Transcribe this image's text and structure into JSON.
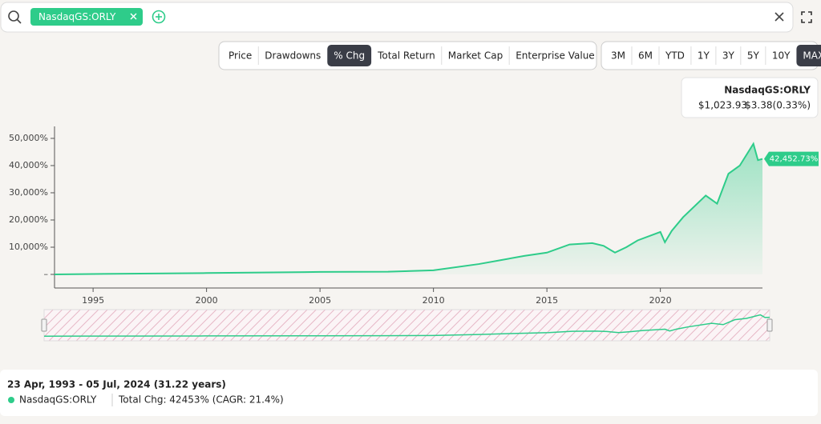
{
  "search": {
    "tag": "NasdaqGS:ORLY"
  },
  "tabs": [
    "Price",
    "Drawdowns",
    "% Chg",
    "Total Return",
    "Market Cap",
    "Enterprise Value"
  ],
  "active_tab": 2,
  "ranges": [
    "3M",
    "6M",
    "YTD",
    "1Y",
    "3Y",
    "5Y",
    "10Y",
    "MAX"
  ],
  "active_range": 7,
  "tooltip": {
    "name": "NasdaqGS:ORLY",
    "price": "$1,023.93",
    "change": "$3.38(0.33%)"
  },
  "chart_data": {
    "type": "line",
    "x": [
      1993.3,
      1995,
      2000,
      2005,
      2008,
      2010,
      2012,
      2013,
      2014,
      2015,
      2016,
      2017,
      2017.5,
      2018,
      2018.5,
      2019,
      2020,
      2020.2,
      2020.5,
      2021,
      2022,
      2022.5,
      2023,
      2023.5,
      2024.1,
      2024.3,
      2024.5
    ],
    "series": [
      {
        "name": "NasdaqGS:ORLY",
        "color": "#2ecc8a",
        "values": [
          0,
          150,
          500,
          900,
          1000,
          1500,
          3800,
          5300,
          6800,
          8000,
          11000,
          11500,
          10500,
          8000,
          10000,
          12500,
          15600,
          11800,
          16000,
          21000,
          29000,
          26000,
          37000,
          40000,
          48000,
          42000,
          42452.73
        ],
        "value_labels": [
          null,
          null,
          null,
          null,
          null,
          null,
          null,
          null,
          null,
          null,
          null,
          null,
          null,
          null,
          null,
          null,
          null,
          null,
          null,
          null,
          null,
          null,
          null,
          null,
          null,
          null,
          "42,452.73%"
        ]
      }
    ],
    "xlim": [
      1993.3,
      2024.5
    ],
    "xticks": [
      1995,
      2000,
      2005,
      2010,
      2015,
      2020
    ],
    "ylim": [
      -5000,
      54400
    ],
    "yticks": [
      {
        "value": 0,
        "label": "–"
      },
      {
        "value": 10000,
        "label": "10,000%"
      },
      {
        "value": 20000,
        "label": "20,000%"
      },
      {
        "value": 30000,
        "label": "30,000%"
      },
      {
        "value": 40000,
        "label": "40,000%"
      },
      {
        "value": 50000,
        "label": "50,000%"
      }
    ]
  },
  "footer": {
    "range": "23 Apr, 1993 - 05 Jul, 2024 (31.22 years)",
    "name": "NasdaqGS:ORLY",
    "summary": "Total Chg: 42453% (CAGR: 21.4%)"
  }
}
